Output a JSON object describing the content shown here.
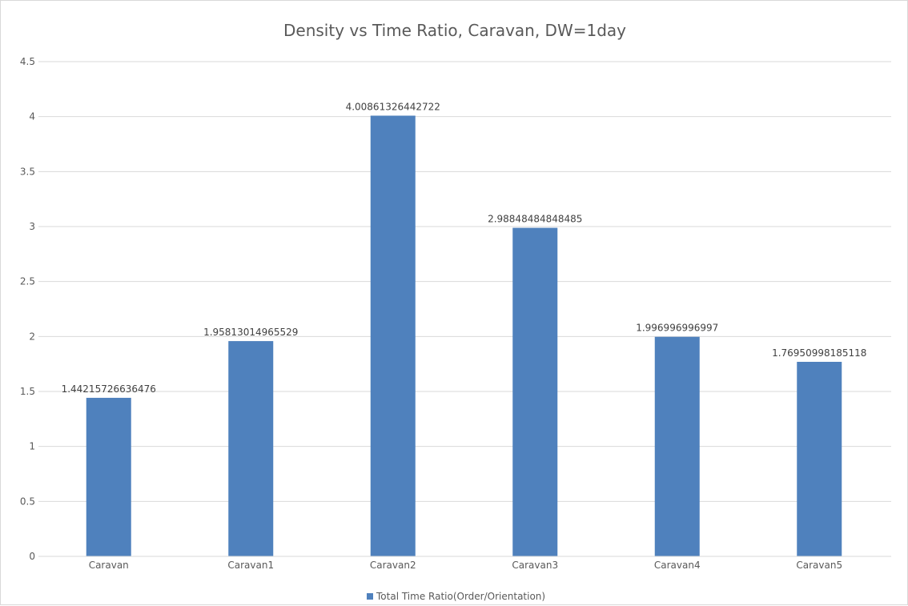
{
  "chart_data": {
    "type": "bar",
    "title": "Density vs Time Ratio, Caravan, DW=1day",
    "xlabel": "",
    "ylabel": "",
    "categories": [
      "Caravan",
      "Caravan1",
      "Caravan2",
      "Caravan3",
      "Caravan4",
      "Caravan5"
    ],
    "series": [
      {
        "name": "Total Time Ratio(Order/Orientation)",
        "values": [
          1.44215726636476,
          1.95813014965529,
          4.00861326442722,
          2.98848484848485,
          1.996996996997,
          1.76950998185118
        ],
        "labels": [
          "1.44215726636476",
          "1.95813014965529",
          "4.00861326442722",
          "2.98848484848485",
          "1.996996996997",
          "1.76950998185118"
        ],
        "color": "#4f81bd"
      }
    ],
    "ylim": [
      0,
      4.5
    ],
    "yticks": [
      "0",
      "0.5",
      "1",
      "1.5",
      "2",
      "2.5",
      "3",
      "3.5",
      "4",
      "4.5"
    ],
    "grid": true,
    "legend_position": "bottom"
  }
}
